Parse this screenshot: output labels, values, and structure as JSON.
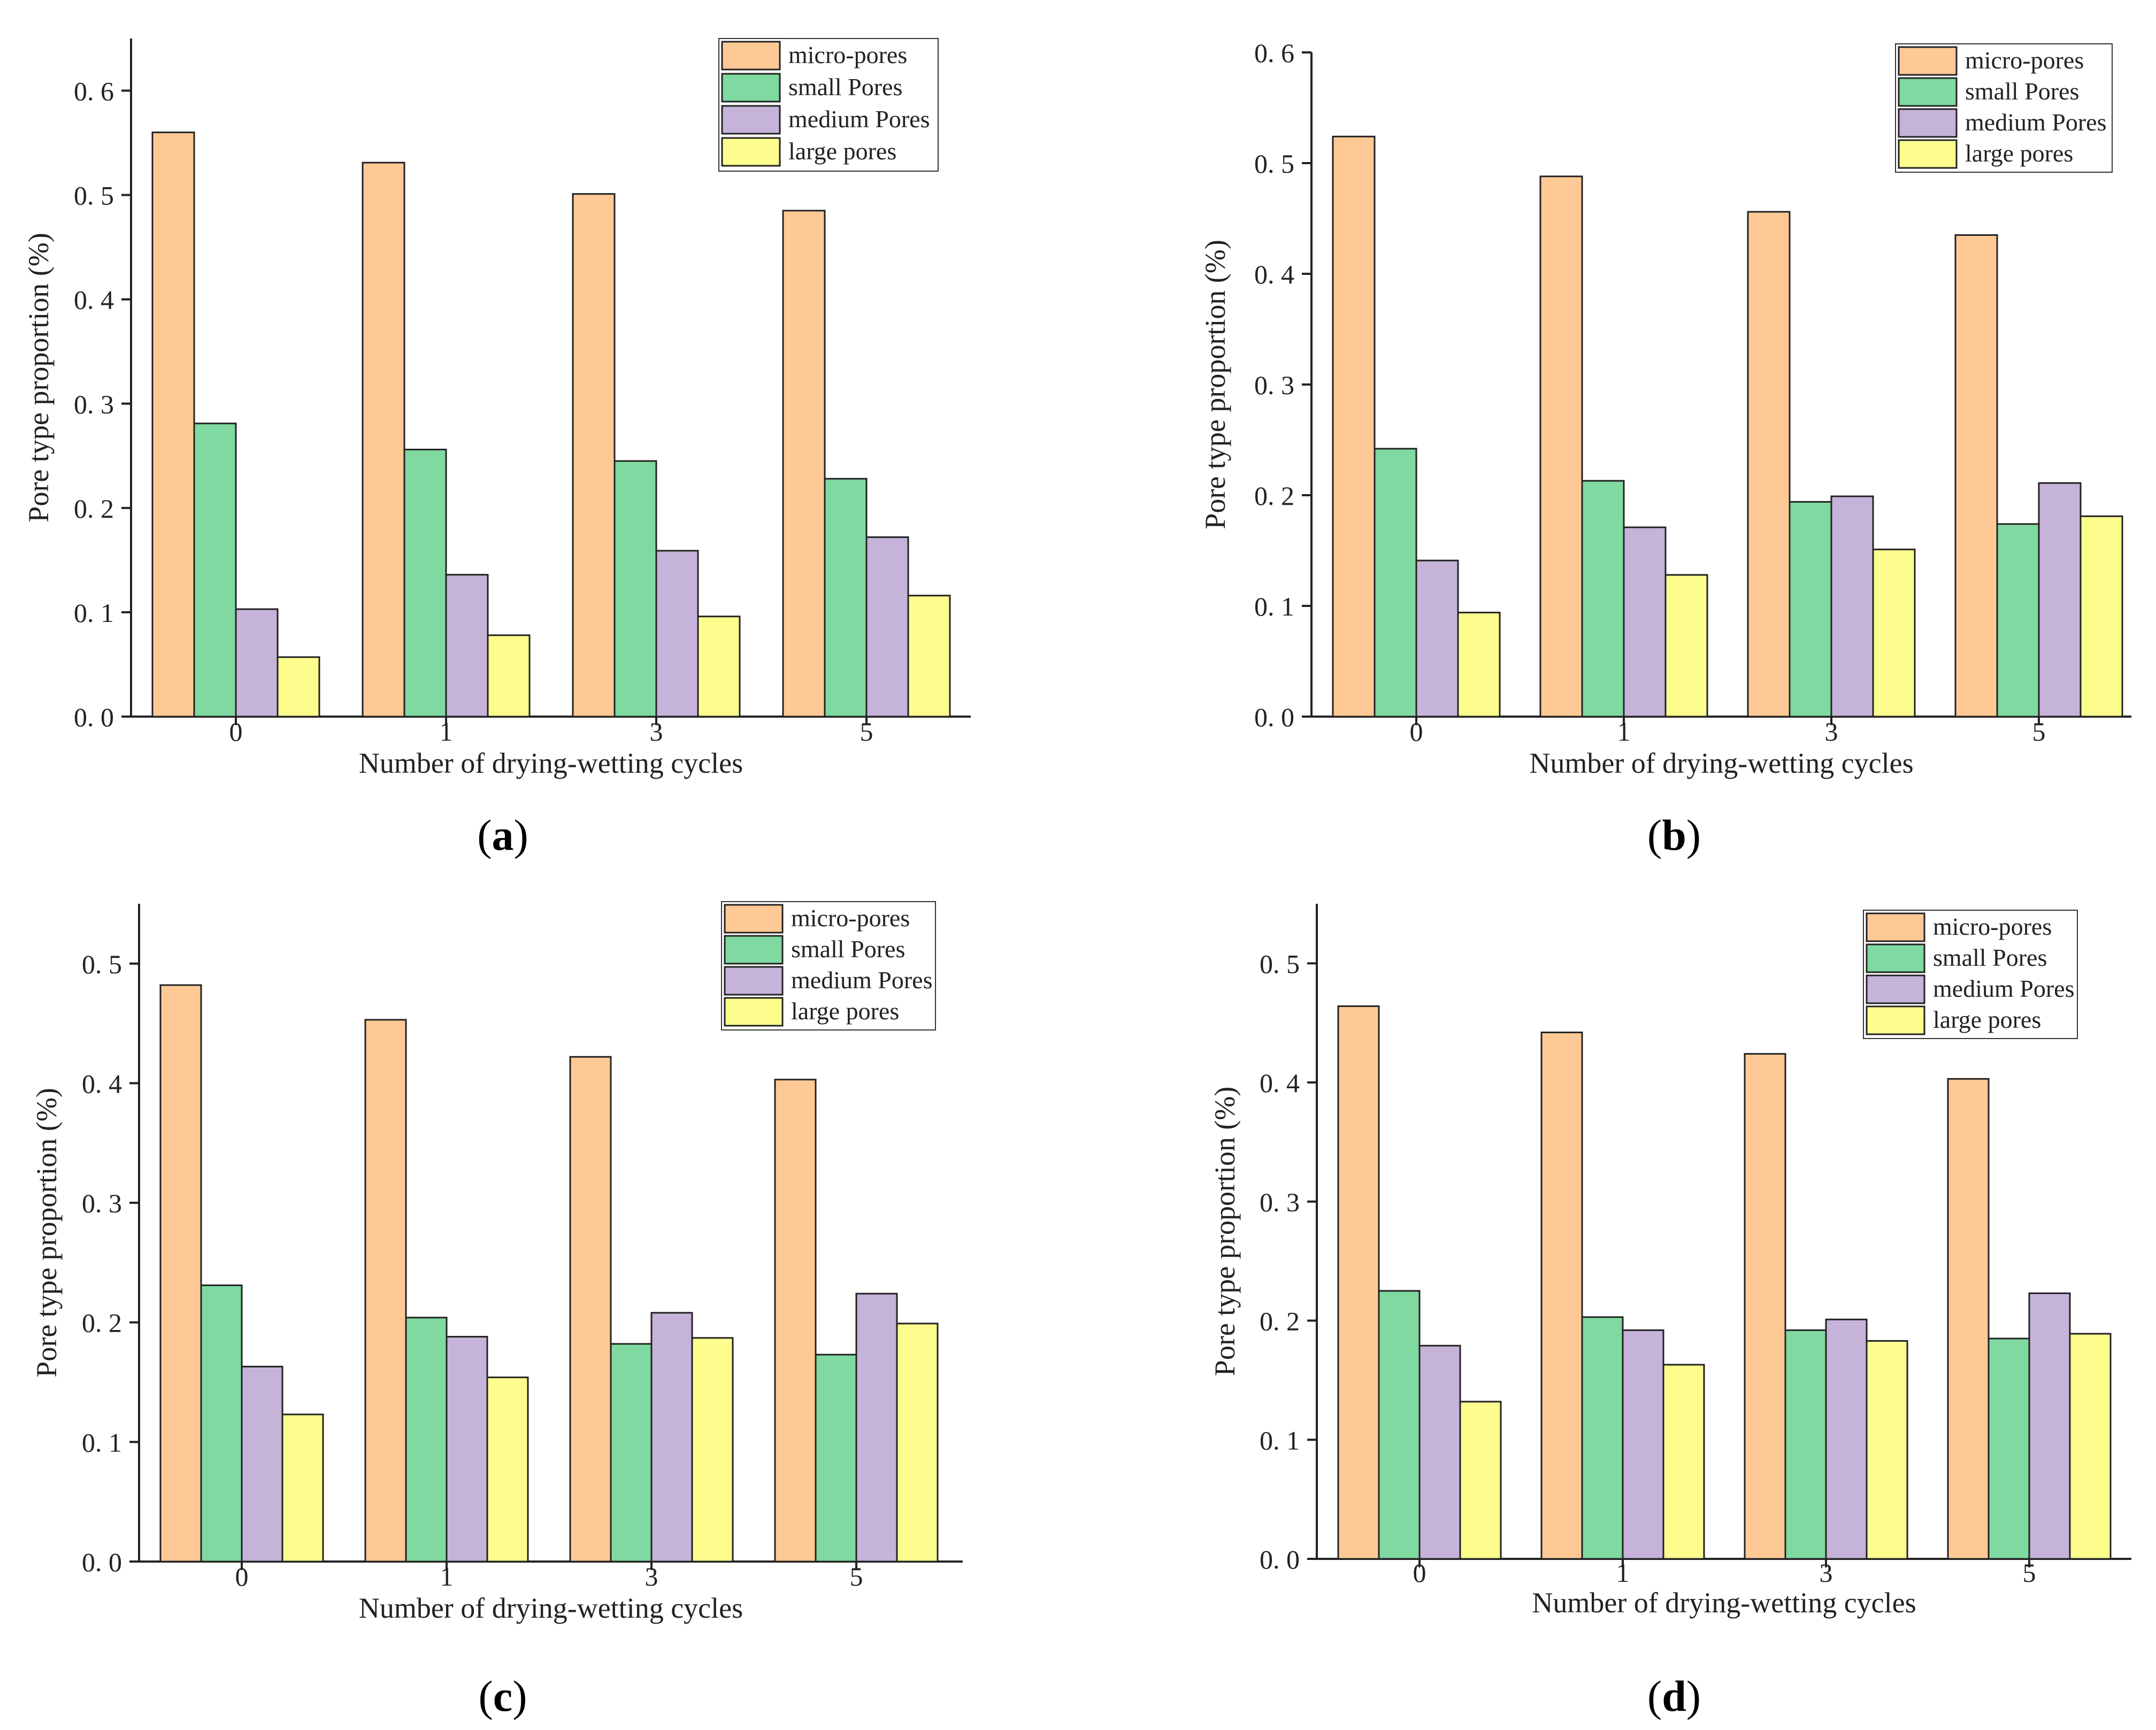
{
  "colors": {
    "micro": "#ffc996",
    "small": "#7fd9a0",
    "medium": "#c6b3d9",
    "large": "#fdfd8e",
    "stroke": "#222222"
  },
  "chart_data": [
    {
      "panel": "a",
      "caption_letter": "a",
      "type": "bar",
      "xlabel": "Number of drying-wetting cycles",
      "ylabel": "Pore type proportion (%)",
      "categories": [
        "0",
        "1",
        "3",
        "5"
      ],
      "ylim": [
        0,
        0.65
      ],
      "yticks": [
        "0. 0",
        "0. 1",
        "0. 2",
        "0. 3",
        "0. 4",
        "0. 5",
        "0. 6"
      ],
      "series": [
        {
          "name": "micro-pores",
          "values": [
            0.56,
            0.531,
            0.501,
            0.485
          ]
        },
        {
          "name": "small Pores",
          "values": [
            0.281,
            0.256,
            0.245,
            0.228
          ]
        },
        {
          "name": "medium Pores",
          "values": [
            0.103,
            0.136,
            0.159,
            0.172
          ]
        },
        {
          "name": "large pores",
          "values": [
            0.057,
            0.078,
            0.096,
            0.116
          ]
        }
      ]
    },
    {
      "panel": "b",
      "caption_letter": "b",
      "type": "bar",
      "xlabel": "Number of drying-wetting cycles",
      "ylabel": "Pore type proportion (%)",
      "categories": [
        "0",
        "1",
        "3",
        "5"
      ],
      "ylim": [
        0,
        0.6
      ],
      "yticks": [
        "0. 0",
        "0. 1",
        "0. 2",
        "0. 3",
        "0. 4",
        "0. 5",
        "0. 6"
      ],
      "series": [
        {
          "name": "micro-pores",
          "values": [
            0.524,
            0.488,
            0.456,
            0.435
          ]
        },
        {
          "name": "small Pores",
          "values": [
            0.242,
            0.213,
            0.194,
            0.174
          ]
        },
        {
          "name": "medium Pores",
          "values": [
            0.141,
            0.171,
            0.199,
            0.211
          ]
        },
        {
          "name": "large pores",
          "values": [
            0.094,
            0.128,
            0.151,
            0.181
          ]
        }
      ]
    },
    {
      "panel": "c",
      "caption_letter": "c",
      "type": "bar",
      "xlabel": "Number of drying-wetting cycles",
      "ylabel": "Pore type proportion (%)",
      "categories": [
        "0",
        "1",
        "3",
        "5"
      ],
      "ylim": [
        0,
        0.55
      ],
      "yticks": [
        "0. 0",
        "0. 1",
        "0. 2",
        "0. 3",
        "0. 4",
        "0. 5"
      ],
      "series": [
        {
          "name": "micro-pores",
          "values": [
            0.482,
            0.453,
            0.422,
            0.403
          ]
        },
        {
          "name": "small Pores",
          "values": [
            0.231,
            0.204,
            0.182,
            0.173
          ]
        },
        {
          "name": "medium Pores",
          "values": [
            0.163,
            0.188,
            0.208,
            0.224
          ]
        },
        {
          "name": "large pores",
          "values": [
            0.123,
            0.154,
            0.187,
            0.199
          ]
        }
      ]
    },
    {
      "panel": "d",
      "caption_letter": "d",
      "type": "bar",
      "xlabel": "Number of drying-wetting cycles",
      "ylabel": "Pore type proportion (%)",
      "categories": [
        "0",
        "1",
        "3",
        "5"
      ],
      "ylim": [
        0,
        0.55
      ],
      "yticks": [
        "0. 0",
        "0. 1",
        "0. 2",
        "0. 3",
        "0. 4",
        "0. 5"
      ],
      "series": [
        {
          "name": "micro-pores",
          "values": [
            0.464,
            0.442,
            0.424,
            0.403
          ]
        },
        {
          "name": "small Pores",
          "values": [
            0.225,
            0.203,
            0.192,
            0.185
          ]
        },
        {
          "name": "medium Pores",
          "values": [
            0.179,
            0.192,
            0.201,
            0.223
          ]
        },
        {
          "name": "large pores",
          "values": [
            0.132,
            0.163,
            0.183,
            0.189
          ]
        }
      ]
    }
  ]
}
